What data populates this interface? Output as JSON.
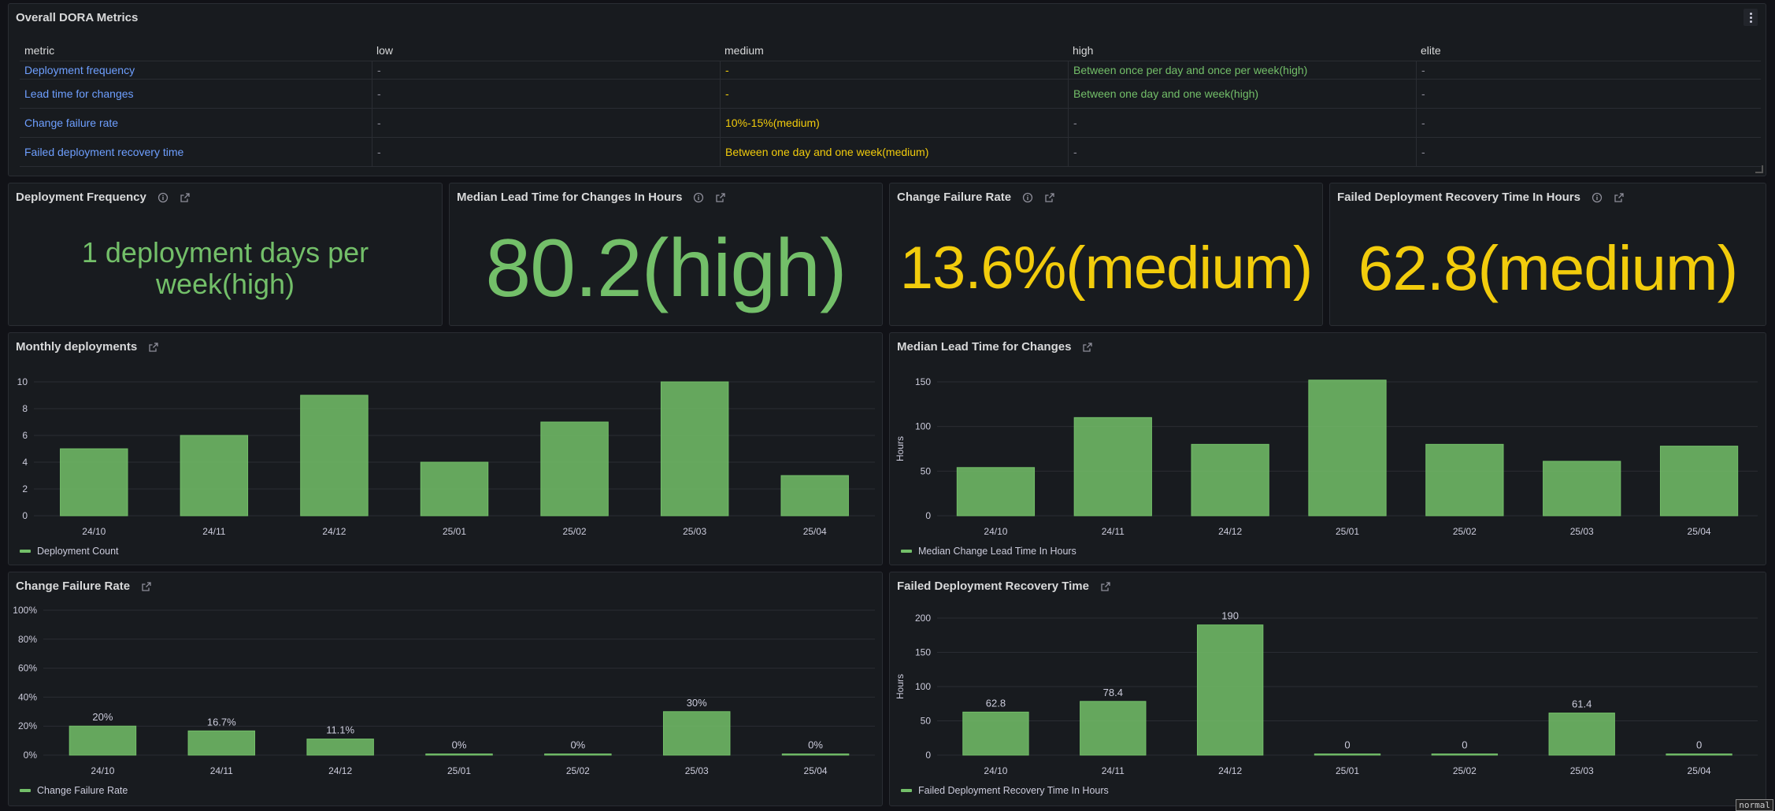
{
  "dora": {
    "title": "Overall DORA Metrics",
    "headers": [
      "metric",
      "low",
      "medium",
      "high",
      "elite"
    ],
    "rows": [
      [
        "Deployment frequency",
        "-",
        "-",
        "Between once per day and once per week(high)",
        "-"
      ],
      [
        "Lead time for changes",
        "-",
        "-",
        "Between one day and one week(high)",
        "-"
      ],
      [
        "Change failure rate",
        "-",
        "10%-15%(medium)",
        "-",
        "-"
      ],
      [
        "Failed deployment recovery time",
        "-",
        "Between one day and one week(medium)",
        "-",
        "-"
      ]
    ]
  },
  "stats": {
    "deploy_freq": {
      "title": "Deployment Frequency",
      "value": "1 deployment days per week(high)",
      "color": "#73bf69"
    },
    "lead_time": {
      "title": "Median Lead Time for Changes In Hours",
      "value": "80.2(high)",
      "color": "#73bf69"
    },
    "cfr": {
      "title": "Change Failure Rate",
      "value": "13.6%(medium)",
      "color": "#f2cc0c"
    },
    "recovery": {
      "title": "Failed Deployment Recovery Time In Hours",
      "value": "62.8(medium)",
      "color": "#f2cc0c"
    }
  },
  "charts": {
    "monthly": {
      "title": "Monthly deployments",
      "legend": "Deployment Count"
    },
    "lead": {
      "title": "Median Lead Time for Changes",
      "legend": "Median Change Lead Time In Hours"
    },
    "cfr": {
      "title": "Change Failure Rate",
      "legend": "Change Failure Rate"
    },
    "recovery": {
      "title": "Failed Deployment Recovery Time",
      "legend": "Failed Deployment Recovery Time In Hours"
    }
  },
  "status_text": "normal",
  "colors": {
    "bar": "#73bf69",
    "link": "#6e9fff",
    "medium": "#f2cc0c",
    "high": "#73bf69"
  },
  "chart_data": [
    {
      "id": "monthly",
      "type": "bar",
      "title": "Monthly deployments",
      "categories": [
        "24/10",
        "24/11",
        "24/12",
        "25/01",
        "25/02",
        "25/03",
        "25/04"
      ],
      "series": [
        {
          "name": "Deployment Count",
          "values": [
            5,
            6,
            9,
            4,
            7,
            10,
            3
          ]
        }
      ],
      "ylabel": "",
      "yticks": [
        0,
        2,
        4,
        6,
        8,
        10
      ],
      "ylim": [
        0,
        10
      ],
      "legend": "bottom-left"
    },
    {
      "id": "lead",
      "type": "bar",
      "title": "Median Lead Time for Changes",
      "categories": [
        "24/10",
        "24/11",
        "24/12",
        "25/01",
        "25/02",
        "25/03",
        "25/04"
      ],
      "series": [
        {
          "name": "Median Change Lead Time In Hours",
          "values": [
            54,
            110,
            80,
            152,
            80,
            61,
            78
          ]
        }
      ],
      "ylabel": "Hours",
      "yticks": [
        0,
        50,
        100,
        150
      ],
      "ylim": [
        0,
        150
      ],
      "legend": "bottom-left"
    },
    {
      "id": "cfr",
      "type": "bar",
      "title": "Change Failure Rate",
      "categories": [
        "24/10",
        "24/11",
        "24/12",
        "25/01",
        "25/02",
        "25/03",
        "25/04"
      ],
      "series": [
        {
          "name": "Change Failure Rate",
          "values": [
            20,
            16.7,
            11.1,
            0,
            0,
            30,
            0
          ]
        }
      ],
      "data_labels": [
        "20%",
        "16.7%",
        "11.1%",
        "0%",
        "0%",
        "30%",
        "0%"
      ],
      "ylabel": "",
      "yticks": [
        0,
        20,
        40,
        60,
        80,
        100
      ],
      "ytick_labels": [
        "0%",
        "20%",
        "40%",
        "60%",
        "80%",
        "100%"
      ],
      "ylim": [
        0,
        100
      ],
      "legend": "bottom-left"
    },
    {
      "id": "recovery",
      "type": "bar",
      "title": "Failed Deployment Recovery Time",
      "categories": [
        "24/10",
        "24/11",
        "24/12",
        "25/01",
        "25/02",
        "25/03",
        "25/04"
      ],
      "series": [
        {
          "name": "Failed Deployment Recovery Time In Hours",
          "values": [
            62.8,
            78.4,
            190,
            0,
            0,
            61.4,
            0
          ]
        }
      ],
      "data_labels": [
        "62.8",
        "78.4",
        "190",
        "0",
        "0",
        "61.4",
        "0"
      ],
      "ylabel": "Hours",
      "yticks": [
        0,
        50,
        100,
        150,
        200
      ],
      "ylim": [
        0,
        200
      ],
      "legend": "bottom-left"
    }
  ]
}
